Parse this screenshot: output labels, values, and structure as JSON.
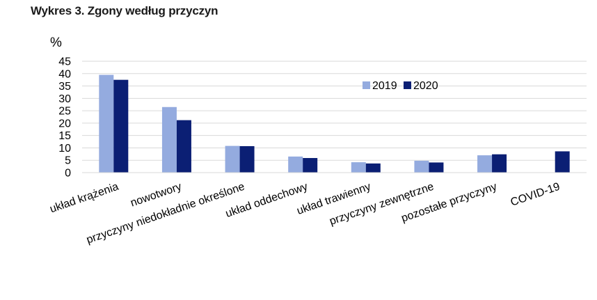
{
  "title": "Wykres 3. Zgony według przyczyn",
  "chart_data": {
    "type": "bar",
    "ylabel": "%",
    "xlabel": "",
    "ylim": [
      0,
      45
    ],
    "yticks": [
      0,
      5,
      10,
      15,
      20,
      25,
      30,
      35,
      40,
      45
    ],
    "grid": true,
    "legend_position": "top-right",
    "categories": [
      "układ krążenia",
      "nowotwory",
      "przyczyny niedokładnie określone",
      "układ oddechowy",
      "układ trawienny",
      "przyczyny zewnętrzne",
      "pozostałe przyczyny",
      "COVID-19"
    ],
    "series": [
      {
        "name": "2019",
        "color": "#94abdf",
        "values": [
          39.5,
          26.5,
          10.8,
          6.5,
          4.2,
          4.8,
          7.0,
          null
        ]
      },
      {
        "name": "2020",
        "color": "#0b1f74",
        "values": [
          37.5,
          21.2,
          10.7,
          5.9,
          3.7,
          4.1,
          7.4,
          8.6
        ]
      }
    ]
  }
}
